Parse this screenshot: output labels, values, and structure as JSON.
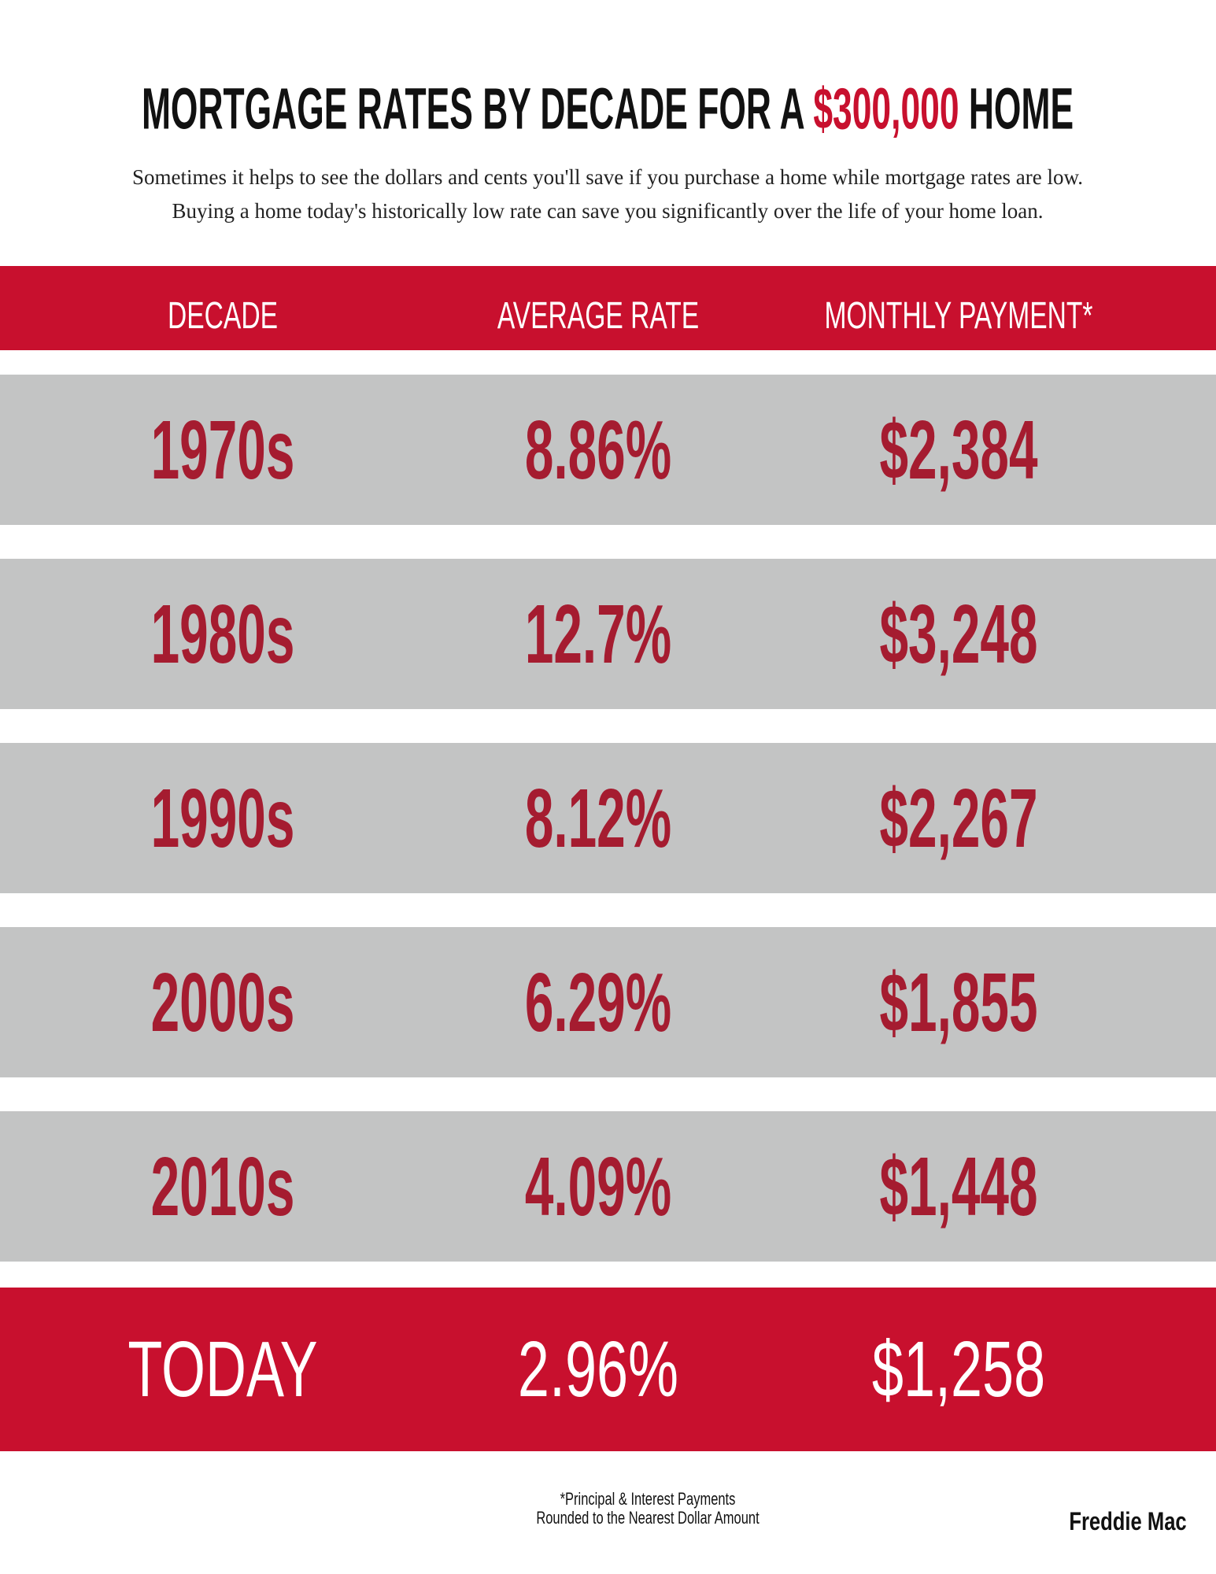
{
  "header": {
    "title_start": "MORTGAGE RATES BY DECADE FOR A ",
    "title_highlight": "$300,000",
    "title_end": " HOME",
    "subtitle": [
      "Sometimes it helps to see the dollars and cents you'll save if you purchase a home while mortgage rates are low.",
      "Buying a home today's historically low rate can save you significantly over the life of your home loan."
    ]
  },
  "table": {
    "columns": [
      "DECADE",
      "AVERAGE RATE",
      "MONTHLY PAYMENT*"
    ],
    "rows": [
      [
        "1970s",
        "8.86%",
        "$2,384"
      ],
      [
        "1980s",
        "12.7%",
        "$3,248"
      ],
      [
        "1990s",
        "8.12%",
        "$2,267"
      ],
      [
        "2000s",
        "6.29%",
        "$1,855"
      ],
      [
        "2010s",
        "4.09%",
        "$1,448"
      ],
      [
        "TODAY",
        "2.96%",
        "$1,258"
      ]
    ]
  },
  "footnote": [
    "*Principal & Interest Payments",
    "Rounded to the Nearest Dollar Amount"
  ],
  "source": "Freddie Mac"
}
